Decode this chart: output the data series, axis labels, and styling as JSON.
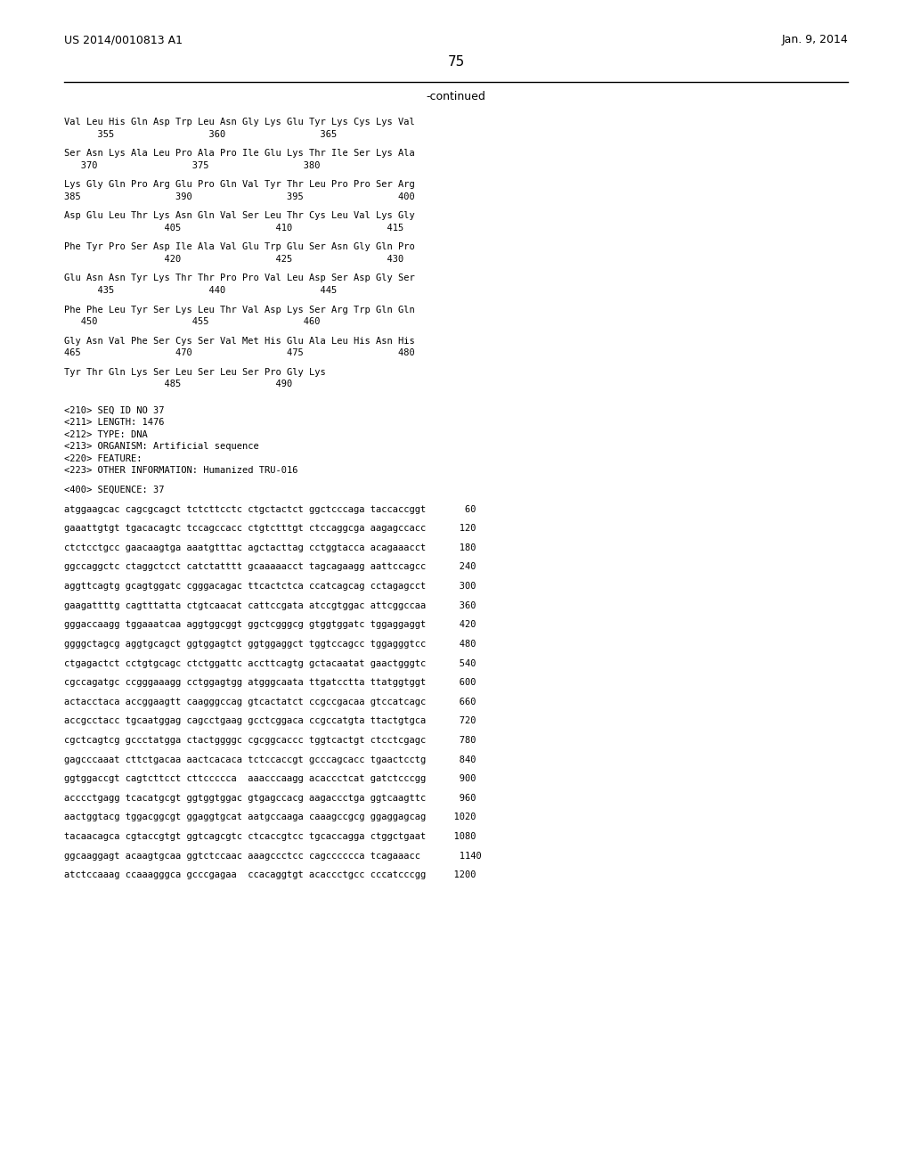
{
  "background_color": "#ffffff",
  "top_left_text": "US 2014/0010813 A1",
  "top_right_text": "Jan. 9, 2014",
  "page_number": "75",
  "continued_text": "-continued",
  "body_lines": [
    "Val Leu His Gln Asp Trp Leu Asn Gly Lys Glu Tyr Lys Cys Lys Val",
    "      355                 360                 365",
    "",
    "Ser Asn Lys Ala Leu Pro Ala Pro Ile Glu Lys Thr Ile Ser Lys Ala",
    "   370                 375                 380",
    "",
    "Lys Gly Gln Pro Arg Glu Pro Gln Val Tyr Thr Leu Pro Pro Ser Arg",
    "385                 390                 395                 400",
    "",
    "Asp Glu Leu Thr Lys Asn Gln Val Ser Leu Thr Cys Leu Val Lys Gly",
    "                  405                 410                 415",
    "",
    "Phe Tyr Pro Ser Asp Ile Ala Val Glu Trp Glu Ser Asn Gly Gln Pro",
    "                  420                 425                 430",
    "",
    "Glu Asn Asn Tyr Lys Thr Thr Pro Pro Val Leu Asp Ser Asp Gly Ser",
    "      435                 440                 445",
    "",
    "Phe Phe Leu Tyr Ser Lys Leu Thr Val Asp Lys Ser Arg Trp Gln Gln",
    "   450                 455                 460",
    "",
    "Gly Asn Val Phe Ser Cys Ser Val Met His Glu Ala Leu His Asn His",
    "465                 470                 475                 480",
    "",
    "Tyr Thr Gln Lys Ser Leu Ser Leu Ser Pro Gly Lys",
    "                  485                 490",
    "",
    "",
    "<210> SEQ ID NO 37",
    "<211> LENGTH: 1476",
    "<212> TYPE: DNA",
    "<213> ORGANISM: Artificial sequence",
    "<220> FEATURE:",
    "<223> OTHER INFORMATION: Humanized TRU-016",
    "",
    "<400> SEQUENCE: 37",
    "",
    "atggaagcac cagcgcagct tctcttcctc ctgctactct ggctcccaga taccaccggt       60",
    "",
    "gaaattgtgt tgacacagtc tccagccacc ctgtctttgt ctccaggcga aagagccacc      120",
    "",
    "ctctcctgcc gaacaagtga aaatgtttac agctacttag cctggtacca acagaaacct      180",
    "",
    "ggccaggctc ctaggctcct catctatttt gcaaaaacct tagcagaagg aattccagcc      240",
    "",
    "aggttcagtg gcagtggatc cgggacagac ttcactctca ccatcagcag cctagagcct      300",
    "",
    "gaagattttg cagtttatta ctgtcaacat cattccgata atccgtggac attcggccaa      360",
    "",
    "gggaccaagg tggaaatcaa aggtggcggt ggctcgggcg gtggtggatc tggaggaggt      420",
    "",
    "ggggctagcg aggtgcagct ggtggagtct ggtggaggct tggtccagcc tggagggtcc      480",
    "",
    "ctgagactct cctgtgcagc ctctggattc accttcagtg gctacaatat gaactgggtc      540",
    "",
    "cgccagatgc ccgggaaagg cctggagtgg atgggcaata ttgatcctta ttatggtggt      600",
    "",
    "actacctaca accggaagtt caagggccag gtcactatct ccgccgacaa gtccatcagc      660",
    "",
    "accgcctacc tgcaatggag cagcctgaag gcctcggaca ccgccatgta ttactgtgca      720",
    "",
    "cgctcagtcg gccctatgga ctactggggc cgcggcaccc tggtcactgt ctcctcgagc      780",
    "",
    "gagcccaaat cttctgacaa aactcacaca tctccaccgt gcccagcacc tgaactcctg      840",
    "",
    "ggtggaccgt cagtcttcct cttccccca  aaacccaagg acaccctcat gatctcccgg      900",
    "",
    "acccctgagg tcacatgcgt ggtggtggac gtgagccacg aagaccctga ggtcaagttc      960",
    "",
    "aactggtacg tggacggcgt ggaggtgcat aatgccaaga caaagccgcg ggaggagcag     1020",
    "",
    "tacaacagca cgtaccgtgt ggtcagcgtc ctcaccgtcc tgcaccagga ctggctgaat     1080",
    "",
    "ggcaaggagt acaagtgcaa ggtctccaac aaagccctcc cagcccccca tcagaaacc       1140",
    "",
    "atctccaaag ccaaagggca gcccgagaa  ccacaggtgt acaccctgcc cccatcccgg     1200"
  ]
}
